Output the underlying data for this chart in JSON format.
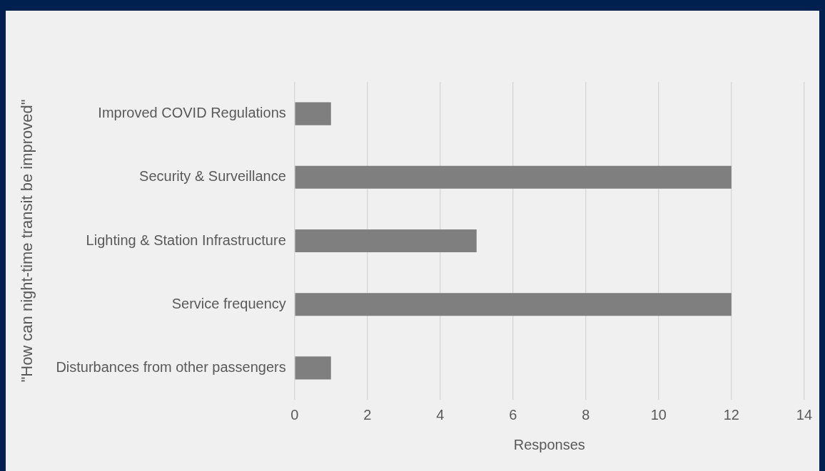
{
  "chart_data": {
    "type": "bar",
    "orientation": "horizontal",
    "categories": [
      "Improved COVID Regulations",
      "Security & Surveillance",
      "Lighting & Station Infrastructure",
      "Service frequency",
      "Disturbances from other passengers"
    ],
    "values": [
      1,
      12,
      5,
      12,
      1
    ],
    "color": "#7f7f7f",
    "xlim": [
      0,
      14
    ],
    "xticks": [
      0,
      2,
      4,
      6,
      8,
      10,
      12,
      14
    ],
    "xlabel": "Responses",
    "ylabel": "\"How can night-time transit be improved\"",
    "grid": "x"
  }
}
